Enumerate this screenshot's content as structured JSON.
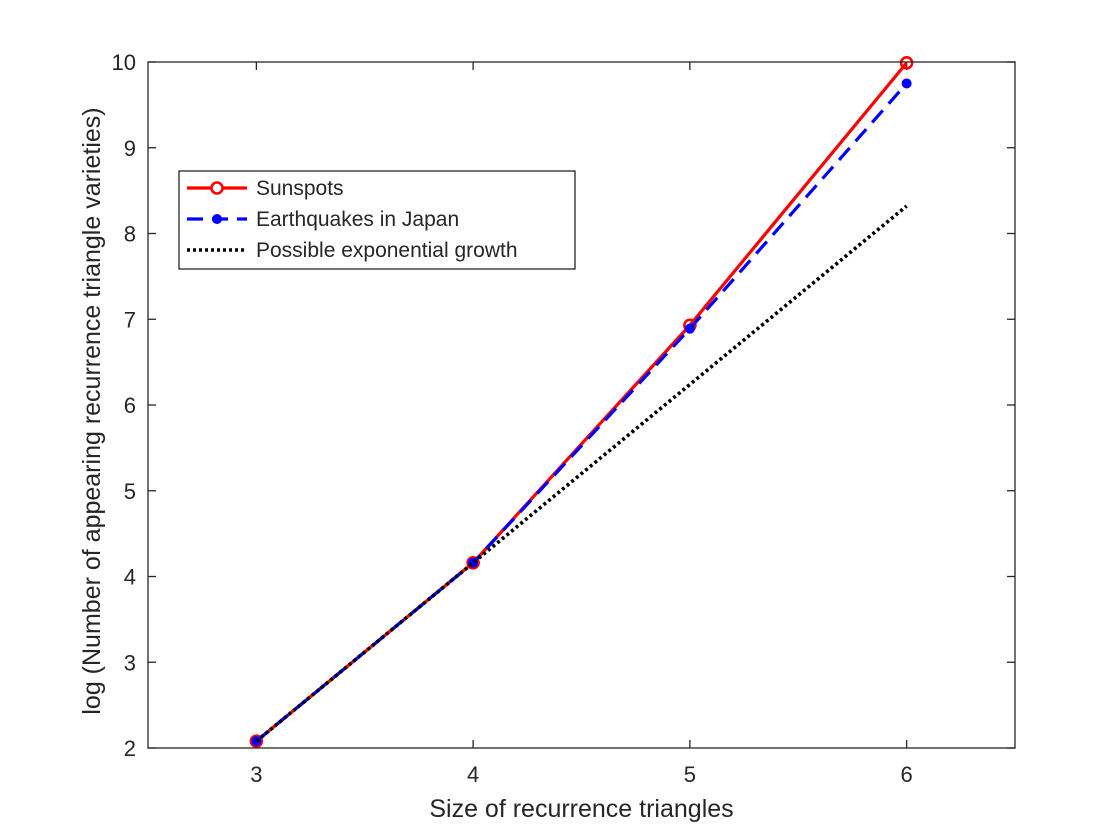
{
  "chart_data": {
    "type": "line",
    "xlabel": "Size of recurrence triangles",
    "ylabel": "log (Number of appearing recurrence triangle varieties)",
    "xlim": [
      2.5,
      6.5
    ],
    "ylim": [
      2,
      10
    ],
    "xticks": [
      3,
      4,
      5,
      6
    ],
    "yticks": [
      2,
      3,
      4,
      5,
      6,
      7,
      8,
      9,
      10
    ],
    "grid": false,
    "legend_position": "top-left",
    "series": [
      {
        "name": "Sunspots",
        "color": "#ff0000",
        "line_style": "solid",
        "marker": "open-circle",
        "x": [
          3,
          4,
          5,
          6
        ],
        "y": [
          2.08,
          4.16,
          6.93,
          9.99
        ]
      },
      {
        "name": "Earthquakes in Japan",
        "color": "#0000ff",
        "line_style": "dashed",
        "marker": "filled-circle",
        "x": [
          3,
          4,
          5,
          6
        ],
        "y": [
          2.08,
          4.16,
          6.89,
          9.75
        ]
      },
      {
        "name": "Possible exponential growth",
        "color": "#000000",
        "line_style": "dotted",
        "marker": "none",
        "x": [
          3,
          4,
          5,
          6
        ],
        "y": [
          2.08,
          4.16,
          6.24,
          8.32
        ]
      }
    ]
  }
}
